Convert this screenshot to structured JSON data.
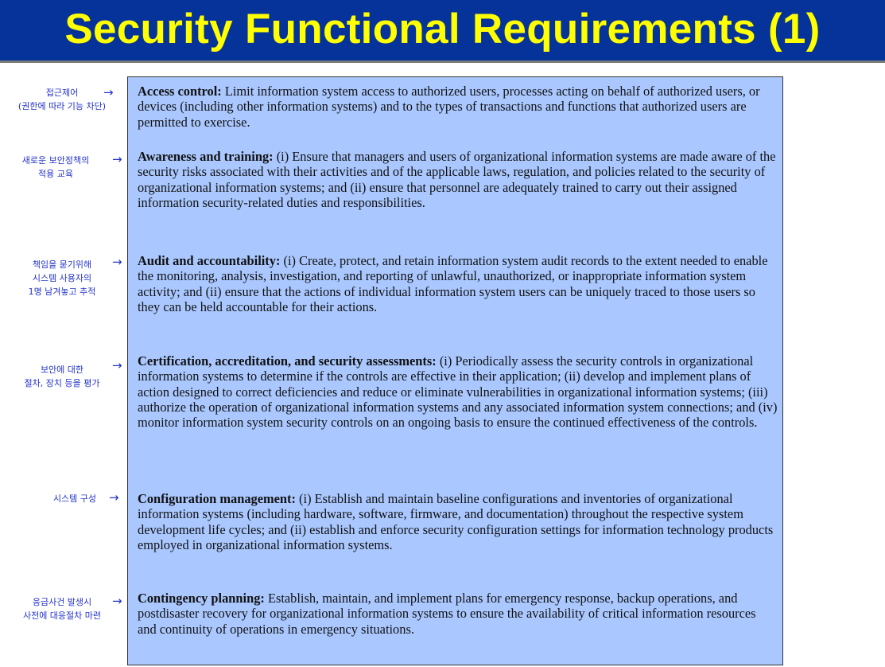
{
  "page": {
    "title": "Security Functional Requirements (1)"
  },
  "requirements": [
    {
      "name": "Access control:",
      "text": " Limit information system access to authorized users, processes acting on behalf of authorized users, or devices (including other information systems) and to the types of transactions and functions that authorized users are permitted to exercise."
    },
    {
      "name": "Awareness and training:",
      "text": " (i) Ensure that managers and users of organizational information systems are made aware of the security risks associated with their activities and of the applicable laws, regulation, and policies related to the security of organizational information systems; and (ii) ensure that personnel are adequately trained to carry out their assigned information security-related duties and responsibilities."
    },
    {
      "name": "Audit and accountability:",
      "text": " (i) Create, protect, and retain information system audit records to the extent needed to enable the monitoring, analysis, investigation, and reporting of unlawful, unauthorized, or inappropriate information system activity; and (ii) ensure that the actions of individual information system users can be uniquely traced to those users so they can be held accountable for their actions."
    },
    {
      "name": "Certification, accreditation, and security assessments:",
      "text": " (i) Periodically assess the security controls in organizational information systems to determine if the controls are effective in their application; (ii) develop and implement plans of action designed to correct deficiencies and reduce or eliminate vulnerabilities in organizational information systems; (iii) authorize the operation of organizational information systems and any associated information system connections; and (iv) monitor information system security controls on an ongoing basis to ensure the continued effectiveness of the controls."
    },
    {
      "name": "Configuration management:",
      "text": " (i) Establish and maintain baseline configurations and inventories of organizational information systems (including hardware, software, firmware, and documentation) throughout the respective system development life cycles; and (ii) establish and enforce security configuration settings for information technology products employed in organizational information systems."
    },
    {
      "name": "Contingency planning:",
      "text": " Establish, maintain, and implement plans for emergency response, backup operations, and postdisaster recovery for organizational information systems to ensure the availability of critical information resources and continuity of operations in emergency situations."
    }
  ],
  "notes": [
    {
      "lines": [
        "접근제어",
        "(권한에 따라 기능 차단)"
      ]
    },
    {
      "lines": [
        "새로운 보안정책의",
        "적용 교육"
      ]
    },
    {
      "lines": [
        "책임을 묻기위해",
        "시스템 사용자의",
        "1명 남겨놓고 추적"
      ]
    },
    {
      "lines": [
        "보안에 대한",
        "절차, 장치 등을 평가"
      ]
    },
    {
      "lines": [
        "시스템 구성"
      ]
    },
    {
      "lines": [
        "응급사건 발생시",
        "사전에 대응절차 마련"
      ]
    }
  ],
  "arrow_glyph": "→",
  "colors": {
    "title_bg": "#063399",
    "title_text": "#ffff00",
    "box_bg": "#aac8ff",
    "annotation": "#2433c9"
  }
}
